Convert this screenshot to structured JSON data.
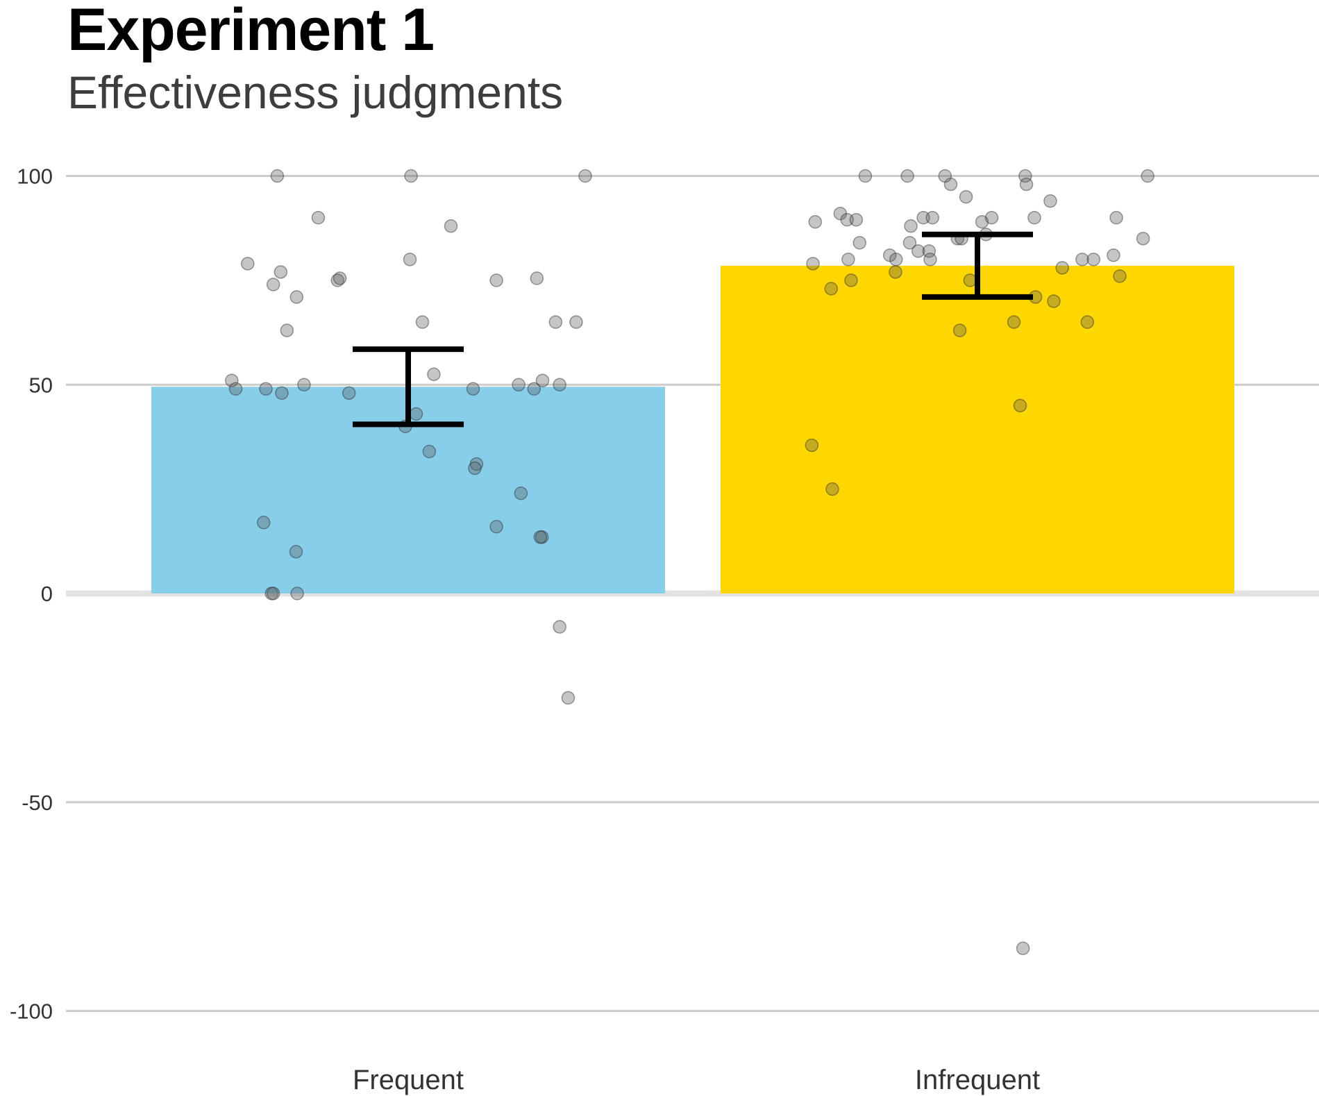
{
  "chart_data": {
    "type": "bar",
    "title": "Experiment 1",
    "subtitle": "Effectiveness judgments",
    "xlabel": "",
    "ylabel": "",
    "categories": [
      "Frequent",
      "Infrequent"
    ],
    "values": [
      49.5,
      78.5
    ],
    "error_bars": [
      {
        "low": 40.5,
        "high": 58.5
      },
      {
        "low": 71,
        "high": 86
      }
    ],
    "colors": [
      "#87ceeb",
      "#ffd700"
    ],
    "ylim": [
      -110,
      108
    ],
    "yticks": [
      -100,
      -50,
      0,
      50,
      100
    ],
    "grid": true,
    "legend": "none",
    "points": [
      [
        {
          "x": -0.282,
          "y": 79
        },
        {
          "x": -0.23,
          "y": 100
        },
        {
          "x": -0.237,
          "y": 74
        },
        {
          "x": -0.224,
          "y": 77
        },
        {
          "x": -0.213,
          "y": 63
        },
        {
          "x": -0.196,
          "y": 71
        },
        {
          "x": -0.158,
          "y": 90
        },
        {
          "x": -0.124,
          "y": 75
        },
        {
          "x": -0.12,
          "y": 75.5
        },
        {
          "x": -0.31,
          "y": 51
        },
        {
          "x": -0.303,
          "y": 49
        },
        {
          "x": -0.25,
          "y": 49
        },
        {
          "x": -0.222,
          "y": 48
        },
        {
          "x": -0.183,
          "y": 50
        },
        {
          "x": -0.104,
          "y": 48
        },
        {
          "x": -0.254,
          "y": 17
        },
        {
          "x": -0.197,
          "y": 10
        },
        {
          "x": -0.24,
          "y": 0
        },
        {
          "x": -0.237,
          "y": 0
        },
        {
          "x": -0.195,
          "y": 0
        },
        {
          "x": 0.005,
          "y": 100
        },
        {
          "x": 0.003,
          "y": 80
        },
        {
          "x": 0.075,
          "y": 88
        },
        {
          "x": 0.025,
          "y": 65
        },
        {
          "x": 0.045,
          "y": 52.5
        },
        {
          "x": 0.014,
          "y": 43
        },
        {
          "x": -0.005,
          "y": 40
        },
        {
          "x": 0.037,
          "y": 34
        },
        {
          "x": 0.114,
          "y": 49
        },
        {
          "x": 0.12,
          "y": 31
        },
        {
          "x": 0.117,
          "y": 30
        },
        {
          "x": 0.155,
          "y": 75
        },
        {
          "x": 0.226,
          "y": 75.5
        },
        {
          "x": 0.259,
          "y": 65
        },
        {
          "x": 0.295,
          "y": 65
        },
        {
          "x": 0.194,
          "y": 50
        },
        {
          "x": 0.221,
          "y": 49
        },
        {
          "x": 0.236,
          "y": 51
        },
        {
          "x": 0.266,
          "y": 50
        },
        {
          "x": 0.198,
          "y": 24
        },
        {
          "x": 0.155,
          "y": 16
        },
        {
          "x": 0.235,
          "y": 13.5
        },
        {
          "x": 0.232,
          "y": 13.5
        },
        {
          "x": 0.311,
          "y": 100
        },
        {
          "x": 0.266,
          "y": -8
        },
        {
          "x": 0.281,
          "y": -25
        }
      ],
      [
        {
          "x": -0.285,
          "y": 89
        },
        {
          "x": -0.241,
          "y": 91
        },
        {
          "x": -0.229,
          "y": 89.5
        },
        {
          "x": -0.213,
          "y": 89.5
        },
        {
          "x": -0.207,
          "y": 84
        },
        {
          "x": -0.289,
          "y": 79
        },
        {
          "x": -0.227,
          "y": 80
        },
        {
          "x": -0.154,
          "y": 81
        },
        {
          "x": -0.143,
          "y": 80
        },
        {
          "x": -0.119,
          "y": 84
        },
        {
          "x": -0.117,
          "y": 88
        },
        {
          "x": -0.104,
          "y": 82
        },
        {
          "x": -0.123,
          "y": 100
        },
        {
          "x": -0.197,
          "y": 100
        },
        {
          "x": -0.095,
          "y": 90
        },
        {
          "x": -0.079,
          "y": 90
        },
        {
          "x": -0.085,
          "y": 82
        },
        {
          "x": -0.083,
          "y": 80
        },
        {
          "x": -0.144,
          "y": 77
        },
        {
          "x": -0.257,
          "y": 73
        },
        {
          "x": -0.222,
          "y": 75
        },
        {
          "x": -0.047,
          "y": 98
        },
        {
          "x": -0.057,
          "y": 100
        },
        {
          "x": -0.035,
          "y": 85
        },
        {
          "x": -0.028,
          "y": 85
        },
        {
          "x": -0.02,
          "y": 95
        },
        {
          "x": -0.013,
          "y": 75
        },
        {
          "x": 0.008,
          "y": 89
        },
        {
          "x": 0.015,
          "y": 86
        },
        {
          "x": 0.025,
          "y": 90
        },
        {
          "x": 0.084,
          "y": 100
        },
        {
          "x": 0.086,
          "y": 98
        },
        {
          "x": 0.1,
          "y": 90
        },
        {
          "x": 0.128,
          "y": 94
        },
        {
          "x": 0.102,
          "y": 71
        },
        {
          "x": 0.064,
          "y": 65
        },
        {
          "x": 0.134,
          "y": 70
        },
        {
          "x": 0.149,
          "y": 78
        },
        {
          "x": 0.184,
          "y": 80
        },
        {
          "x": 0.204,
          "y": 80
        },
        {
          "x": 0.244,
          "y": 90
        },
        {
          "x": 0.239,
          "y": 81
        },
        {
          "x": 0.25,
          "y": 76
        },
        {
          "x": 0.291,
          "y": 85
        },
        {
          "x": 0.299,
          "y": 100
        },
        {
          "x": 0.193,
          "y": 65
        },
        {
          "x": -0.031,
          "y": 63
        },
        {
          "x": 0.075,
          "y": 45
        },
        {
          "x": -0.291,
          "y": 35.5
        },
        {
          "x": -0.255,
          "y": 25
        },
        {
          "x": 0.08,
          "y": -85
        }
      ]
    ]
  }
}
